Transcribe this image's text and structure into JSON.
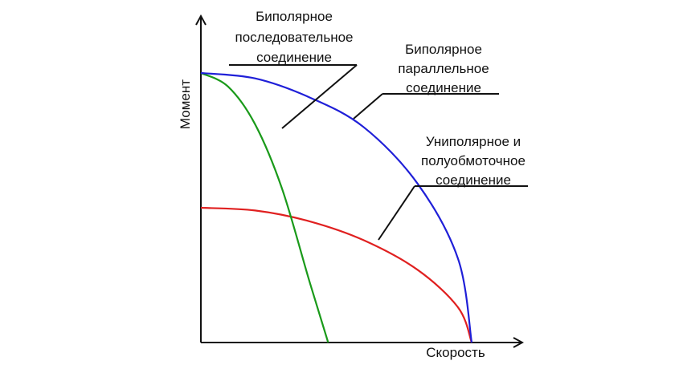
{
  "chart_data": {
    "type": "line",
    "xlabel": "Скорость",
    "ylabel": "Момент",
    "xlim": [
      0,
      1
    ],
    "ylim": [
      0,
      1
    ],
    "grid": false,
    "series": [
      {
        "name_lines": [
          "Биполярное",
          "последовательное",
          "соединение"
        ],
        "color": "#1a9a1a",
        "x": [
          0,
          0.1,
          0.2,
          0.3,
          0.4,
          0.47
        ],
        "y": [
          1.0,
          0.95,
          0.81,
          0.57,
          0.23,
          0.0
        ]
      },
      {
        "name_lines": [
          "Биполярное",
          "параллельное",
          "соединение"
        ],
        "color": "#1f1fd8",
        "x": [
          0,
          0.2,
          0.4,
          0.6,
          0.8,
          0.95,
          1.0
        ],
        "y": [
          1.0,
          0.98,
          0.91,
          0.8,
          0.59,
          0.31,
          0.0
        ]
      },
      {
        "name_lines": [
          "Униполярное и",
          "полуобмоточное",
          "соединение"
        ],
        "color": "#e02020",
        "x": [
          0,
          0.2,
          0.4,
          0.6,
          0.8,
          0.95,
          1.0
        ],
        "y": [
          0.5,
          0.49,
          0.45,
          0.38,
          0.27,
          0.13,
          0.0
        ]
      }
    ]
  }
}
